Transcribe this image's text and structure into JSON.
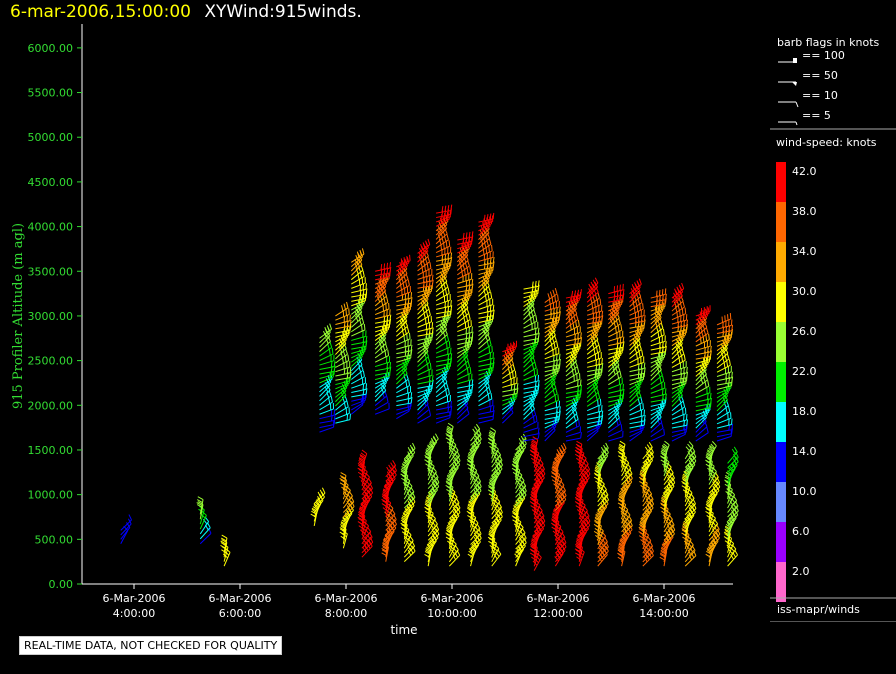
{
  "title": {
    "date_label": "6-mar-2006,15:00:00",
    "name_label": "XYWind:915winds."
  },
  "status_text": "REAL-TIME DATA, NOT CHECKED FOR QUALITY",
  "legend": {
    "barb_title": "barb flags in knots",
    "barb_items": [
      "== 100",
      "== 50",
      "== 10",
      "== 5"
    ],
    "colorbar_title": "wind-speed: knots",
    "colorbar_levels": [
      {
        "label": "42.0",
        "color": "#ff0000"
      },
      {
        "label": "38.0",
        "color": "#ff6600"
      },
      {
        "label": "34.0",
        "color": "#ffaa00"
      },
      {
        "label": "30.0",
        "color": "#ffff00"
      },
      {
        "label": "26.0",
        "color": "#99ff33"
      },
      {
        "label": "22.0",
        "color": "#00ee00"
      },
      {
        "label": "18.0",
        "color": "#00ffff"
      },
      {
        "label": "14.0",
        "color": "#0000ff"
      },
      {
        "label": "10.0",
        "color": "#6688ff"
      },
      {
        "label": "6.0",
        "color": "#9900ff"
      },
      {
        "label": "2.0",
        "color": "#ff66cc"
      }
    ],
    "footer": "iss-mapr/winds"
  },
  "chart_data": {
    "type": "scatter",
    "title": "XYWind:915winds.",
    "xlabel": "time",
    "ylabel": "915 Profiler Altitude (m agl)",
    "ylim": [
      0,
      6200
    ],
    "xlim_hours": [
      3.2,
      15.5
    ],
    "y_ticks": [
      "0.00",
      "500.00",
      "1000.00",
      "1500.00",
      "2000.00",
      "2500.00",
      "3000.00",
      "3500.00",
      "4000.00",
      "4500.00",
      "5000.00",
      "5500.00",
      "6000.00"
    ],
    "x_ticks": [
      {
        "hour": 4,
        "date": "6-Mar-2006",
        "time": "4:00:00"
      },
      {
        "hour": 6,
        "date": "6-Mar-2006",
        "time": "6:00:00"
      },
      {
        "hour": 8,
        "date": "6-Mar-2006",
        "time": "8:00:00"
      },
      {
        "hour": 10,
        "date": "6-Mar-2006",
        "time": "10:00:00"
      },
      {
        "hour": 12,
        "date": "6-Mar-2006",
        "time": "12:00:00"
      },
      {
        "hour": 14,
        "date": "6-Mar-2006",
        "time": "14:00:00"
      }
    ],
    "profiles": [
      {
        "hour": 3.75,
        "bottom": 450,
        "top": 600,
        "speed_low": 14,
        "speed_high": 14
      },
      {
        "hour": 5.25,
        "bottom": 450,
        "top": 780,
        "speed_low": 14,
        "speed_high": 26
      },
      {
        "hour": 5.7,
        "bottom": 200,
        "top": 350,
        "speed_low": 30,
        "speed_high": 30
      },
      {
        "hour": 7.4,
        "bottom": 650,
        "top": 900,
        "speed_low": 30,
        "speed_high": 30
      },
      {
        "hour": 7.5,
        "bottom": 1700,
        "top": 2750,
        "speed_low": 14,
        "speed_high": 26
      },
      {
        "hour": 7.8,
        "bottom": 1800,
        "top": 3000,
        "speed_low": 18,
        "speed_high": 34
      },
      {
        "hour": 7.95,
        "bottom": 400,
        "top": 1050,
        "speed_low": 30,
        "speed_high": 34
      },
      {
        "hour": 8.1,
        "bottom": 1900,
        "top": 3600,
        "speed_low": 14,
        "speed_high": 34
      },
      {
        "hour": 8.3,
        "bottom": 300,
        "top": 1300,
        "speed_low": 42,
        "speed_high": 42
      },
      {
        "hour": 8.55,
        "bottom": 1900,
        "top": 3500,
        "speed_low": 14,
        "speed_high": 42
      },
      {
        "hour": 8.75,
        "bottom": 250,
        "top": 1200,
        "speed_low": 38,
        "speed_high": 42
      },
      {
        "hour": 8.95,
        "bottom": 1850,
        "top": 3550,
        "speed_low": 14,
        "speed_high": 42
      },
      {
        "hour": 9.1,
        "bottom": 250,
        "top": 1400,
        "speed_low": 30,
        "speed_high": 26
      },
      {
        "hour": 9.35,
        "bottom": 1800,
        "top": 3700,
        "speed_low": 14,
        "speed_high": 42
      },
      {
        "hour": 9.55,
        "bottom": 200,
        "top": 1500,
        "speed_low": 30,
        "speed_high": 26
      },
      {
        "hour": 9.7,
        "bottom": 1800,
        "top": 4150,
        "speed_low": 14,
        "speed_high": 42
      },
      {
        "hour": 9.95,
        "bottom": 200,
        "top": 1600,
        "speed_low": 30,
        "speed_high": 26
      },
      {
        "hour": 10.1,
        "bottom": 1800,
        "top": 3850,
        "speed_low": 14,
        "speed_high": 42
      },
      {
        "hour": 10.35,
        "bottom": 200,
        "top": 1600,
        "speed_low": 30,
        "speed_high": 26
      },
      {
        "hour": 10.5,
        "bottom": 1800,
        "top": 4050,
        "speed_low": 14,
        "speed_high": 42
      },
      {
        "hour": 10.75,
        "bottom": 200,
        "top": 1550,
        "speed_low": 30,
        "speed_high": 26
      },
      {
        "hour": 10.95,
        "bottom": 1800,
        "top": 2600,
        "speed_low": 14,
        "speed_high": 42
      },
      {
        "hour": 11.2,
        "bottom": 200,
        "top": 1500,
        "speed_low": 30,
        "speed_high": 26
      },
      {
        "hour": 11.35,
        "bottom": 1600,
        "top": 3300,
        "speed_low": 14,
        "speed_high": 30
      },
      {
        "hour": 11.55,
        "bottom": 150,
        "top": 1450,
        "speed_low": 42,
        "speed_high": 42
      },
      {
        "hour": 11.75,
        "bottom": 1600,
        "top": 3150,
        "speed_low": 14,
        "speed_high": 38
      },
      {
        "hour": 11.95,
        "bottom": 200,
        "top": 1400,
        "speed_low": 42,
        "speed_high": 38
      },
      {
        "hour": 12.15,
        "bottom": 1600,
        "top": 3200,
        "speed_low": 14,
        "speed_high": 42
      },
      {
        "hour": 12.4,
        "bottom": 200,
        "top": 1400,
        "speed_low": 42,
        "speed_high": 42
      },
      {
        "hour": 12.55,
        "bottom": 1600,
        "top": 3250,
        "speed_low": 14,
        "speed_high": 42
      },
      {
        "hour": 12.75,
        "bottom": 200,
        "top": 1400,
        "speed_low": 38,
        "speed_high": 26
      },
      {
        "hour": 12.95,
        "bottom": 1600,
        "top": 3250,
        "speed_low": 14,
        "speed_high": 42
      },
      {
        "hour": 13.2,
        "bottom": 200,
        "top": 1400,
        "speed_low": 38,
        "speed_high": 30
      },
      {
        "hour": 13.35,
        "bottom": 1600,
        "top": 3250,
        "speed_low": 14,
        "speed_high": 42
      },
      {
        "hour": 13.6,
        "bottom": 200,
        "top": 1400,
        "speed_low": 38,
        "speed_high": 30
      },
      {
        "hour": 13.75,
        "bottom": 1600,
        "top": 3200,
        "speed_low": 14,
        "speed_high": 38
      },
      {
        "hour": 14.0,
        "bottom": 200,
        "top": 1400,
        "speed_low": 38,
        "speed_high": 26
      },
      {
        "hour": 14.15,
        "bottom": 1600,
        "top": 3200,
        "speed_low": 14,
        "speed_high": 42
      },
      {
        "hour": 14.4,
        "bottom": 200,
        "top": 1400,
        "speed_low": 34,
        "speed_high": 26
      },
      {
        "hour": 14.6,
        "bottom": 1600,
        "top": 3000,
        "speed_low": 14,
        "speed_high": 42
      },
      {
        "hour": 14.85,
        "bottom": 200,
        "top": 1400,
        "speed_low": 34,
        "speed_high": 26
      },
      {
        "hour": 15.0,
        "bottom": 1600,
        "top": 2900,
        "speed_low": 14,
        "speed_high": 38
      },
      {
        "hour": 15.2,
        "bottom": 200,
        "top": 1350,
        "speed_low": 30,
        "speed_high": 22
      }
    ]
  }
}
